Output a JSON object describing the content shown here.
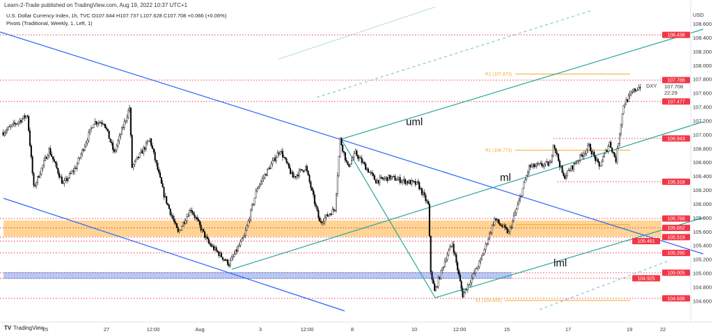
{
  "header": {
    "publisher": "Learn-2-Trade published on TradingView.com, Aug 19, 2022 10:37 UTC+1",
    "symbol_line": "U.S. Dollar Currency Index, 1h, TVC  O107.644  H107.737  L107.628  C107.708  +0.066 (+0.06%)",
    "indicator_line": "Pivots (Traditional, Weekly, 1, Left, 1)"
  },
  "footer": {
    "brand": "TradingView"
  },
  "colors": {
    "up": "#ffffff",
    "down": "#000000",
    "level": "#f23645",
    "pitchfork": "#26a69a",
    "trend": "#2962ff",
    "zone_orange": "#ffb74d",
    "zone_blue": "#90b4f5",
    "pivot": "#f5a623"
  },
  "chart_data": {
    "type": "candlestick",
    "title": "U.S. Dollar Currency Index, 1h, TVC",
    "currency": "USD",
    "ticker": "DXY",
    "last_price": "107.708",
    "countdown": "22:29",
    "y_axis": {
      "ylim": [
        104.5,
        108.75
      ],
      "ticks": [
        "108.600",
        "108.400",
        "108.200",
        "108.000",
        "107.800",
        "107.600",
        "107.400",
        "107.200",
        "107.000",
        "106.800",
        "106.600",
        "106.400",
        "106.200",
        "106.000",
        "105.800",
        "105.600",
        "105.400",
        "105.200",
        "105.000",
        "104.800",
        "104.600"
      ]
    },
    "x_axis": {
      "ticks": [
        "25",
        "27",
        "12:00",
        "Aug",
        "3",
        "12:00",
        "8",
        "10",
        "12:00",
        "15",
        "17",
        "19",
        "22"
      ]
    },
    "price_path": [
      [
        "2022-07-21 15:00",
        107.03
      ],
      [
        "2022-07-22 10:00",
        107.28
      ],
      [
        "2022-07-22 15:00",
        106.23
      ],
      [
        "2022-07-25 03:00",
        106.78
      ],
      [
        "2022-07-25 14:00",
        106.28
      ],
      [
        "2022-07-26 00:00",
        106.53
      ],
      [
        "2022-07-26 14:00",
        107.18
      ],
      [
        "2022-07-26 22:00",
        107.18
      ],
      [
        "2022-07-27 06:00",
        106.73
      ],
      [
        "2022-07-27 18:00",
        107.39
      ],
      [
        "2022-07-27 20:00",
        106.53
      ],
      [
        "2022-07-28 10:00",
        106.93
      ],
      [
        "2022-07-28 21:00",
        106.13
      ],
      [
        "2022-07-29 08:00",
        105.58
      ],
      [
        "2022-07-29 18:00",
        105.93
      ],
      [
        "2022-08-01 08:00",
        105.43
      ],
      [
        "2022-08-02 00:00",
        105.13
      ],
      [
        "2022-08-02 12:00",
        105.53
      ],
      [
        "2022-08-02 22:00",
        106.23
      ],
      [
        "2022-08-03 16:00",
        106.78
      ],
      [
        "2022-08-04 02:00",
        106.38
      ],
      [
        "2022-08-04 12:00",
        106.53
      ],
      [
        "2022-08-04 23:00",
        105.73
      ],
      [
        "2022-08-05 11:00",
        105.93
      ],
      [
        "2022-08-05 15:00",
        106.93
      ],
      [
        "2022-08-05 21:00",
        106.53
      ],
      [
        "2022-08-08 03:00",
        106.73
      ],
      [
        "2022-08-08 19:00",
        106.33
      ],
      [
        "2022-08-09 06:00",
        106.38
      ],
      [
        "2022-08-10 04:00",
        106.28
      ],
      [
        "2022-08-10 12:00",
        105.98
      ],
      [
        "2022-08-10 14:00",
        105.03
      ],
      [
        "2022-08-10 17:00",
        104.73
      ],
      [
        "2022-08-11 02:00",
        105.23
      ],
      [
        "2022-08-11 07:00",
        105.43
      ],
      [
        "2022-08-11 15:00",
        104.68
      ],
      [
        "2022-08-12 05:00",
        105.18
      ],
      [
        "2022-08-12 16:00",
        105.78
      ],
      [
        "2022-08-15 03:00",
        105.58
      ],
      [
        "2022-08-15 11:00",
        106.03
      ],
      [
        "2022-08-15 19:00",
        106.53
      ],
      [
        "2022-08-16 12:00",
        106.58
      ],
      [
        "2022-08-16 14:00",
        106.88
      ],
      [
        "2022-08-16 22:00",
        106.38
      ],
      [
        "2022-08-17 18:00",
        106.83
      ],
      [
        "2022-08-18 02:00",
        106.53
      ],
      [
        "2022-08-18 10:00",
        106.88
      ],
      [
        "2022-08-18 15:00",
        106.63
      ],
      [
        "2022-08-18 21:00",
        107.43
      ],
      [
        "2022-08-19 05:00",
        107.63
      ],
      [
        "2022-08-19 11:00",
        107.71
      ]
    ],
    "levels": [
      "108.438",
      "107.786",
      "107.477",
      "106.943",
      "106.318",
      "105.788",
      "105.652",
      "105.519",
      "105.461",
      "105.290",
      "105.005",
      "104.925",
      "104.636"
    ],
    "zones": [
      {
        "from": 105.461,
        "to": 105.7,
        "color": "orange"
      },
      {
        "from": 104.925,
        "to": 105.005,
        "color": "blue"
      }
    ],
    "pivots": [
      {
        "label": "R2 (107.873)",
        "value": 107.873
      },
      {
        "label": "R1 (106.773)",
        "value": 106.773
      },
      {
        "label": "P (105.70",
        "value": 105.7
      },
      {
        "label": "S1 (104.605)",
        "value": 104.605
      }
    ],
    "pitchfork_labels": {
      "upper": "uml",
      "median": "ml",
      "lower": "lml"
    }
  }
}
